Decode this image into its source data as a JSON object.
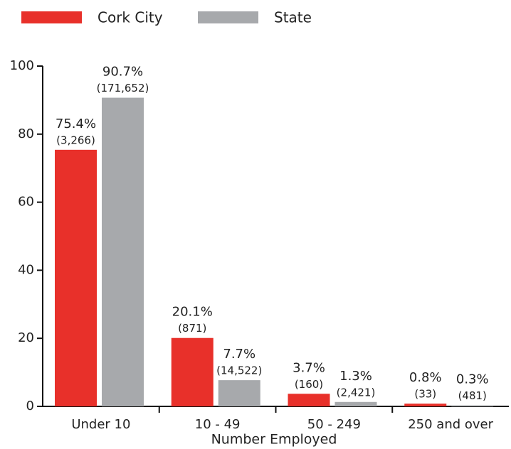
{
  "chart_data": {
    "type": "bar",
    "x_label": "Number Employed",
    "categories": [
      "Under 10",
      "10 - 49",
      "50 - 249",
      "250 and over"
    ],
    "series": [
      {
        "name": "Cork City",
        "color": "#e8302a",
        "values": [
          75.4,
          20.1,
          3.7,
          0.8
        ],
        "value_labels": [
          "75.4%",
          "20.1%",
          "3.7%",
          "0.8%"
        ],
        "count_labels": [
          "(3,266)",
          "(871)",
          "(160)",
          "(33)"
        ]
      },
      {
        "name": "State",
        "color": "#a7a9ac",
        "values": [
          90.7,
          7.7,
          1.3,
          0.3
        ],
        "value_labels": [
          "90.7%",
          "7.7%",
          "1.3%",
          "0.3%"
        ],
        "count_labels": [
          "(171,652)",
          "(14,522)",
          "(2,421)",
          "(481)"
        ]
      }
    ],
    "ylim": [
      0,
      100
    ],
    "yticks": [
      0,
      20,
      40,
      60,
      80,
      100
    ],
    "grid": false,
    "legend": "top"
  }
}
